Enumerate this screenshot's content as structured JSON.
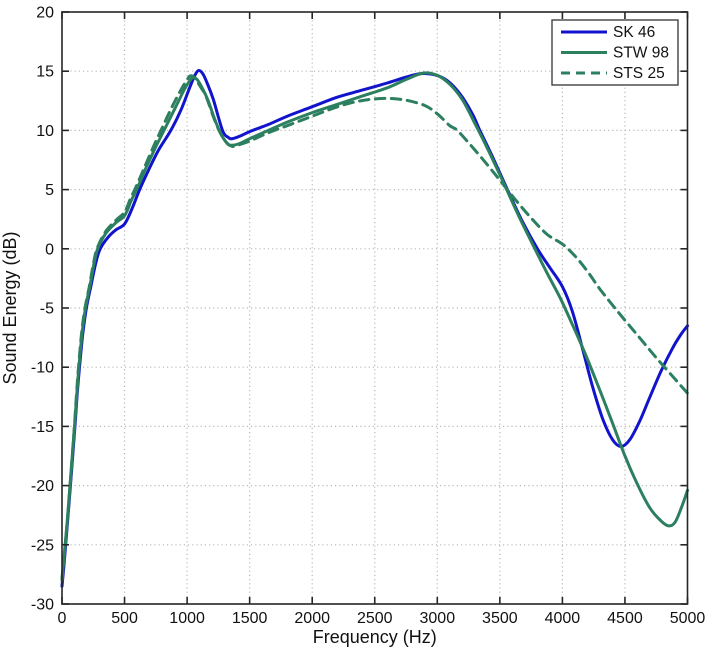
{
  "figure": {
    "background": "#ffffff",
    "axis_color": "#262626",
    "grid_color": "#b8b8b8"
  },
  "chart_data": {
    "type": "line",
    "title": "",
    "xlabel": "Frequency (Hz)",
    "ylabel": "Sound Energy (dB)",
    "xlim": [
      0,
      5000
    ],
    "ylim": [
      -30,
      20
    ],
    "xticks": [
      0,
      500,
      1000,
      1500,
      2000,
      2500,
      3000,
      3500,
      4000,
      4500,
      5000
    ],
    "yticks": [
      -30,
      -25,
      -20,
      -15,
      -10,
      -5,
      0,
      5,
      10,
      15,
      20
    ],
    "xtick_labels": [
      "0",
      "500",
      "1000",
      "1500",
      "2000",
      "2500",
      "3000",
      "3500",
      "4000",
      "4500",
      "5000"
    ],
    "ytick_labels": [
      "-30",
      "-25",
      "-20",
      "-15",
      "-10",
      "-5",
      "0",
      "5",
      "10",
      "15",
      "20"
    ],
    "grid": true,
    "grid_style": "dotted",
    "legend_position": "top-right",
    "legend": [
      "SK 46",
      "STW 98",
      "STS 25"
    ],
    "series": [
      {
        "name": "SK 46",
        "color": "#1213cc",
        "style": "solid",
        "points": [
          [
            0,
            -28.5
          ],
          [
            20,
            -26.2
          ],
          [
            45,
            -23
          ],
          [
            70,
            -19.6
          ],
          [
            100,
            -15.5
          ],
          [
            120,
            -12.5
          ],
          [
            140,
            -10
          ],
          [
            165,
            -7.3
          ],
          [
            195,
            -5
          ],
          [
            230,
            -3.2
          ],
          [
            270,
            -1.2
          ],
          [
            305,
            0
          ],
          [
            370,
            1
          ],
          [
            430,
            1.6
          ],
          [
            500,
            2.1
          ],
          [
            560,
            3.4
          ],
          [
            620,
            5
          ],
          [
            690,
            6.6
          ],
          [
            770,
            8.3
          ],
          [
            870,
            10
          ],
          [
            950,
            11.7
          ],
          [
            1020,
            13.6
          ],
          [
            1060,
            14.6
          ],
          [
            1090,
            15.05
          ],
          [
            1125,
            14.8
          ],
          [
            1160,
            14
          ],
          [
            1210,
            12.6
          ],
          [
            1283,
            10
          ],
          [
            1330,
            9.4
          ],
          [
            1360,
            9.3
          ],
          [
            1420,
            9.5
          ],
          [
            1500,
            9.9
          ],
          [
            1650,
            10.5
          ],
          [
            1800,
            11.2
          ],
          [
            2000,
            12
          ],
          [
            2200,
            12.8
          ],
          [
            2400,
            13.4
          ],
          [
            2600,
            14
          ],
          [
            2750,
            14.5
          ],
          [
            2870,
            14.8
          ],
          [
            2980,
            14.7
          ],
          [
            3080,
            14.2
          ],
          [
            3180,
            13.1
          ],
          [
            3280,
            11.4
          ],
          [
            3340,
            10
          ],
          [
            3440,
            7.8
          ],
          [
            3560,
            5
          ],
          [
            3680,
            2.3
          ],
          [
            3800,
            0
          ],
          [
            3900,
            -1.6
          ],
          [
            4000,
            -3.2
          ],
          [
            4080,
            -5.3
          ],
          [
            4160,
            -8.4
          ],
          [
            4240,
            -11.6
          ],
          [
            4320,
            -14.3
          ],
          [
            4400,
            -16.1
          ],
          [
            4470,
            -16.7
          ],
          [
            4540,
            -16.1
          ],
          [
            4620,
            -14.5
          ],
          [
            4700,
            -12.5
          ],
          [
            4790,
            -10.3
          ],
          [
            4880,
            -8.4
          ],
          [
            4950,
            -7.2
          ],
          [
            5000,
            -6.5
          ]
        ]
      },
      {
        "name": "STW 98",
        "color": "#2c7f5f",
        "style": "solid",
        "points": [
          [
            0,
            -27.8
          ],
          [
            20,
            -25.6
          ],
          [
            45,
            -22.6
          ],
          [
            70,
            -19.1
          ],
          [
            100,
            -15
          ],
          [
            118,
            -12.3
          ],
          [
            135,
            -10
          ],
          [
            160,
            -7.2
          ],
          [
            188,
            -5
          ],
          [
            222,
            -3.2
          ],
          [
            255,
            -1.3
          ],
          [
            285,
            0
          ],
          [
            350,
            1.3
          ],
          [
            430,
            2.2
          ],
          [
            500,
            2.8
          ],
          [
            555,
            4.1
          ],
          [
            605,
            5.2
          ],
          [
            670,
            6.8
          ],
          [
            740,
            8.4
          ],
          [
            815,
            10
          ],
          [
            905,
            11.9
          ],
          [
            975,
            13.4
          ],
          [
            1015,
            14.1
          ],
          [
            1045,
            14.45
          ],
          [
            1080,
            14.3
          ],
          [
            1120,
            13.6
          ],
          [
            1165,
            12.6
          ],
          [
            1222,
            10.9
          ],
          [
            1270,
            9.7
          ],
          [
            1320,
            8.9
          ],
          [
            1350,
            8.75
          ],
          [
            1410,
            8.85
          ],
          [
            1500,
            9.3
          ],
          [
            1650,
            10
          ],
          [
            1800,
            10.7
          ],
          [
            2000,
            11.5
          ],
          [
            2200,
            12.2
          ],
          [
            2400,
            12.9
          ],
          [
            2600,
            13.6
          ],
          [
            2750,
            14.3
          ],
          [
            2890,
            14.85
          ],
          [
            3000,
            14.65
          ],
          [
            3100,
            13.9
          ],
          [
            3200,
            12.6
          ],
          [
            3300,
            10.6
          ],
          [
            3400,
            8.5
          ],
          [
            3520,
            5.8
          ],
          [
            3650,
            2.8
          ],
          [
            3780,
            0
          ],
          [
            3880,
            -2.1
          ],
          [
            3980,
            -4.1
          ],
          [
            4080,
            -6.4
          ],
          [
            4180,
            -8.8
          ],
          [
            4290,
            -11.7
          ],
          [
            4400,
            -14.7
          ],
          [
            4500,
            -17.5
          ],
          [
            4600,
            -19.9
          ],
          [
            4700,
            -21.9
          ],
          [
            4790,
            -23
          ],
          [
            4850,
            -23.4
          ],
          [
            4900,
            -23.1
          ],
          [
            4950,
            -21.9
          ],
          [
            5000,
            -20.4
          ]
        ]
      },
      {
        "name": "STS 25",
        "color": "#2c7f5f",
        "style": "dashed",
        "points": [
          [
            0,
            -28
          ],
          [
            20,
            -25.7
          ],
          [
            45,
            -22.7
          ],
          [
            70,
            -19.2
          ],
          [
            100,
            -14.9
          ],
          [
            115,
            -12.4
          ],
          [
            132,
            -10
          ],
          [
            157,
            -7.1
          ],
          [
            184,
            -5
          ],
          [
            218,
            -3.2
          ],
          [
            250,
            -1.3
          ],
          [
            280,
            0
          ],
          [
            345,
            1.4
          ],
          [
            430,
            2.4
          ],
          [
            500,
            3.1
          ],
          [
            550,
            4.3
          ],
          [
            595,
            5.3
          ],
          [
            660,
            6.9
          ],
          [
            730,
            8.6
          ],
          [
            800,
            10.2
          ],
          [
            880,
            12
          ],
          [
            950,
            13.4
          ],
          [
            995,
            14.2
          ],
          [
            1025,
            14.6
          ],
          [
            1060,
            14.45
          ],
          [
            1100,
            13.8
          ],
          [
            1150,
            12.9
          ],
          [
            1205,
            11.3
          ],
          [
            1255,
            10
          ],
          [
            1305,
            9.1
          ],
          [
            1360,
            8.65
          ],
          [
            1420,
            8.8
          ],
          [
            1500,
            9.1
          ],
          [
            1650,
            9.8
          ],
          [
            1800,
            10.4
          ],
          [
            2000,
            11.2
          ],
          [
            2150,
            11.8
          ],
          [
            2300,
            12.3
          ],
          [
            2450,
            12.6
          ],
          [
            2600,
            12.7
          ],
          [
            2750,
            12.55
          ],
          [
            2900,
            12.1
          ],
          [
            3000,
            11.4
          ],
          [
            3100,
            10.4
          ],
          [
            3160,
            10
          ],
          [
            3280,
            8.6
          ],
          [
            3400,
            7.1
          ],
          [
            3500,
            5.8
          ],
          [
            3620,
            4.2
          ],
          [
            3750,
            2.6
          ],
          [
            3880,
            1.2
          ],
          [
            4000,
            0.4
          ],
          [
            4100,
            -0.6
          ],
          [
            4200,
            -1.9
          ],
          [
            4300,
            -3.4
          ],
          [
            4450,
            -5.4
          ],
          [
            4600,
            -7.3
          ],
          [
            4750,
            -9.2
          ],
          [
            4900,
            -11
          ],
          [
            5000,
            -12.2
          ]
        ]
      }
    ]
  }
}
